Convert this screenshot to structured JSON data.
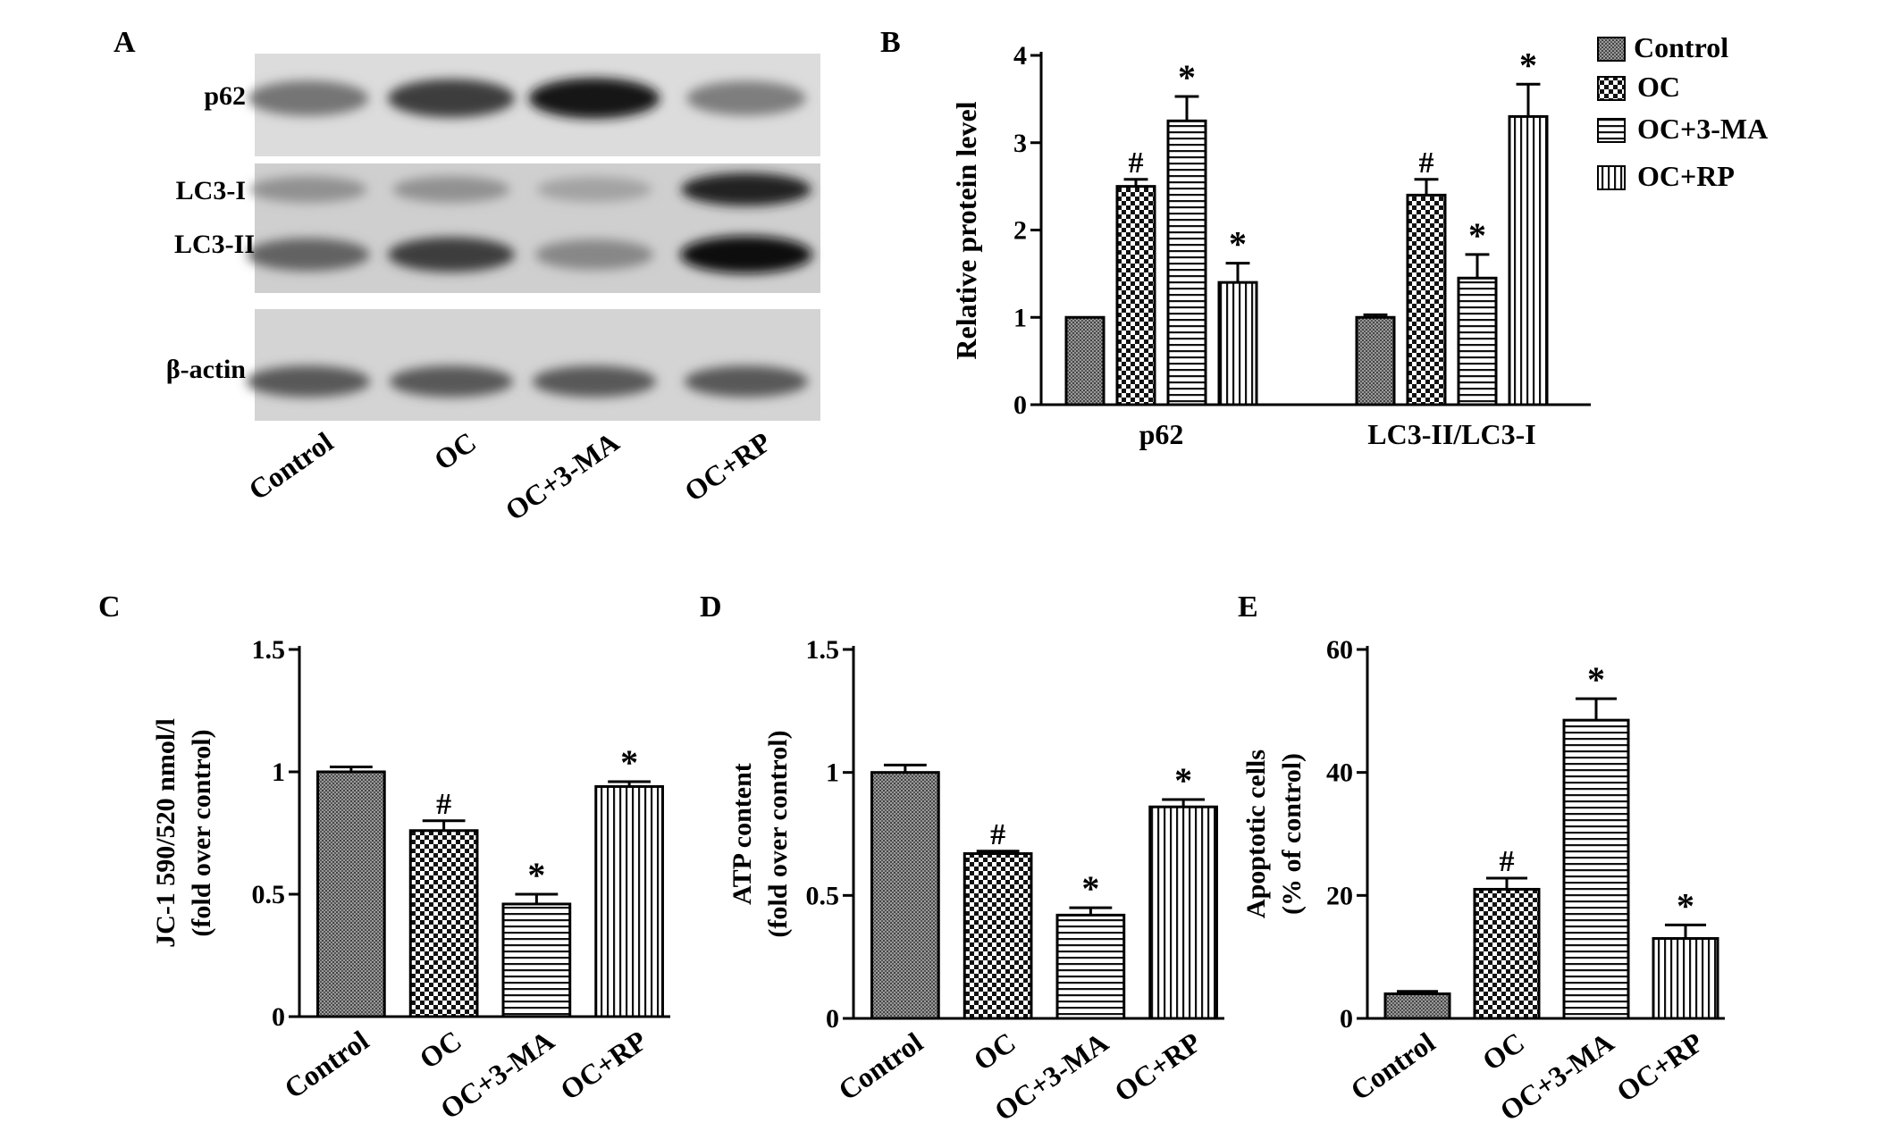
{
  "panel_letters": [
    "A",
    "B",
    "C",
    "D",
    "E"
  ],
  "blot": {
    "row_labels": [
      "p62",
      "LC3-I",
      "LC3-II",
      "β-actin"
    ],
    "lane_labels": [
      "Control",
      "OC",
      "OC+3-MA",
      "OC+RP"
    ],
    "p62_intensity": [
      0.45,
      0.75,
      0.95,
      0.4
    ],
    "lc3i_intensity": [
      0.3,
      0.3,
      0.2,
      0.9
    ],
    "lc3ii_intensity": [
      0.55,
      0.75,
      0.35,
      1.0
    ],
    "actin_intensity": [
      0.6,
      0.6,
      0.6,
      0.6
    ]
  },
  "legend": {
    "entries": [
      "Control",
      "OC",
      "OC+3-MA",
      "OC+RP"
    ],
    "patterns": [
      "dots",
      "checker",
      "hlines",
      "vlines"
    ]
  },
  "chart_data": [
    {
      "panel": "B",
      "type": "bar",
      "ylabel": "Relative protein level",
      "ylim": [
        0,
        4
      ],
      "yticks": [
        0,
        1,
        2,
        3,
        4
      ],
      "ytick_labels": [
        "0",
        "1",
        "2",
        "3",
        "4"
      ],
      "categories": [
        "p62",
        "LC3-II/LC3-I"
      ],
      "series": [
        {
          "name": "Control",
          "pattern": "dots",
          "values": [
            1.0,
            1.0
          ],
          "errors": [
            0.0,
            0.03
          ],
          "marks": [
            "",
            ""
          ]
        },
        {
          "name": "OC",
          "pattern": "checker",
          "values": [
            2.5,
            2.4
          ],
          "errors": [
            0.08,
            0.18
          ],
          "marks": [
            "#",
            "#"
          ]
        },
        {
          "name": "OC+3-MA",
          "pattern": "hlines",
          "values": [
            3.25,
            1.45
          ],
          "errors": [
            0.28,
            0.27
          ],
          "marks": [
            "*",
            "*"
          ]
        },
        {
          "name": "OC+RP",
          "pattern": "vlines",
          "values": [
            1.4,
            3.3
          ],
          "errors": [
            0.22,
            0.37
          ],
          "marks": [
            "*",
            "*"
          ]
        }
      ]
    },
    {
      "panel": "C",
      "type": "bar",
      "ylabel_lines": [
        "JC-1 590/520 nmol/l",
        "(fold over control)"
      ],
      "ylim": [
        0,
        1.5
      ],
      "yticks": [
        0,
        0.5,
        1,
        1.5
      ],
      "ytick_labels": [
        "0",
        "0.5",
        "1",
        "1.5"
      ],
      "categories": [
        "Control",
        "OC",
        "OC+3-MA",
        "OC+RP"
      ],
      "patterns": [
        "dots",
        "checker",
        "hlines",
        "vlines"
      ],
      "values": [
        1.0,
        0.76,
        0.46,
        0.94
      ],
      "errors": [
        0.02,
        0.04,
        0.04,
        0.02
      ],
      "marks": [
        "",
        "#",
        "*",
        "*"
      ]
    },
    {
      "panel": "D",
      "type": "bar",
      "ylabel_lines": [
        "ATP content",
        "(fold over control)"
      ],
      "ylim": [
        0,
        1.5
      ],
      "yticks": [
        0,
        0.5,
        1,
        1.5
      ],
      "ytick_labels": [
        "0",
        "0.5",
        "1",
        "1.5"
      ],
      "categories": [
        "Control",
        "OC",
        "OC+3-MA",
        "OC+RP"
      ],
      "patterns": [
        "dots",
        "checker",
        "hlines",
        "vlines"
      ],
      "values": [
        1.0,
        0.67,
        0.42,
        0.86
      ],
      "errors": [
        0.03,
        0.01,
        0.03,
        0.03
      ],
      "marks": [
        "",
        "#",
        "*",
        "*"
      ]
    },
    {
      "panel": "E",
      "type": "bar",
      "ylabel_lines": [
        "Apoptotic cells",
        "(% of control)"
      ],
      "ylim": [
        0,
        60
      ],
      "yticks": [
        0,
        20,
        40,
        60
      ],
      "ytick_labels": [
        "0",
        "20",
        "40",
        "60"
      ],
      "categories": [
        "Control",
        "OC",
        "OC+3-MA",
        "OC+RP"
      ],
      "patterns": [
        "dots",
        "checker",
        "hlines",
        "vlines"
      ],
      "values": [
        4.0,
        21.0,
        48.5,
        13.0
      ],
      "errors": [
        0.4,
        1.8,
        3.5,
        2.2
      ],
      "marks": [
        "",
        "#",
        "*",
        "*"
      ]
    }
  ]
}
